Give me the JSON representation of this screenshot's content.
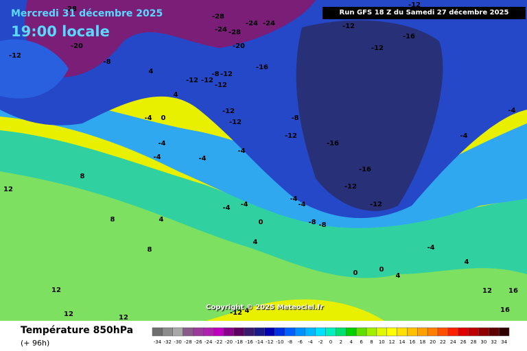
{
  "header": {
    "date": "Mercredi 31 décembre 2025",
    "time": "19:00 locale",
    "run": "Run GFS 18 Z du Samedi 27 décembre 2025"
  },
  "copyright": "Copyright © 2025 Meteociel.fr",
  "legend": {
    "title": "Température 850hPa",
    "subtitle": "(+ 96h)",
    "ticks": [
      -34,
      -32,
      -30,
      -28,
      -26,
      -24,
      -22,
      -20,
      -18,
      -16,
      -14,
      -12,
      -10,
      -8,
      -6,
      -4,
      -2,
      0,
      2,
      4,
      6,
      8,
      10,
      12,
      14,
      16,
      18,
      20,
      22,
      24,
      26,
      28,
      30,
      32,
      34
    ],
    "colors": [
      "#6e6e6e",
      "#8c8c8c",
      "#a8a8a8",
      "#8a5a8a",
      "#9a3a9a",
      "#b020b0",
      "#c000c0",
      "#8a008a",
      "#5a0060",
      "#3a1a6a",
      "#1a1a8a",
      "#0000b0",
      "#0030e0",
      "#0060ff",
      "#0090ff",
      "#00b8ff",
      "#00e0ff",
      "#00f0c0",
      "#00e070",
      "#00d000",
      "#60e000",
      "#a0f000",
      "#e0f800",
      "#ffff00",
      "#ffe000",
      "#ffc000",
      "#ffa000",
      "#ff8000",
      "#ff5000",
      "#ff2000",
      "#e00000",
      "#c00000",
      "#900000",
      "#600000",
      "#300000"
    ]
  },
  "map_labels": [
    -28,
    -28,
    -24,
    -28,
    -24,
    -24,
    -20,
    -20,
    -12,
    -12,
    -16,
    -12,
    -16,
    -8,
    -12,
    -12,
    -12,
    -8,
    -12,
    -12,
    -12,
    -12,
    -8,
    -12,
    -16,
    -16,
    -12,
    -12,
    -4,
    -4,
    -4,
    -4,
    -4,
    -4,
    -4,
    -8,
    -8,
    0,
    4,
    4,
    8,
    8,
    8,
    12,
    12,
    12,
    12,
    12,
    16,
    16,
    4,
    4,
    0,
    -4,
    -4,
    -4,
    4,
    4,
    0,
    -4,
    -4,
    0,
    4,
    -12
  ]
}
